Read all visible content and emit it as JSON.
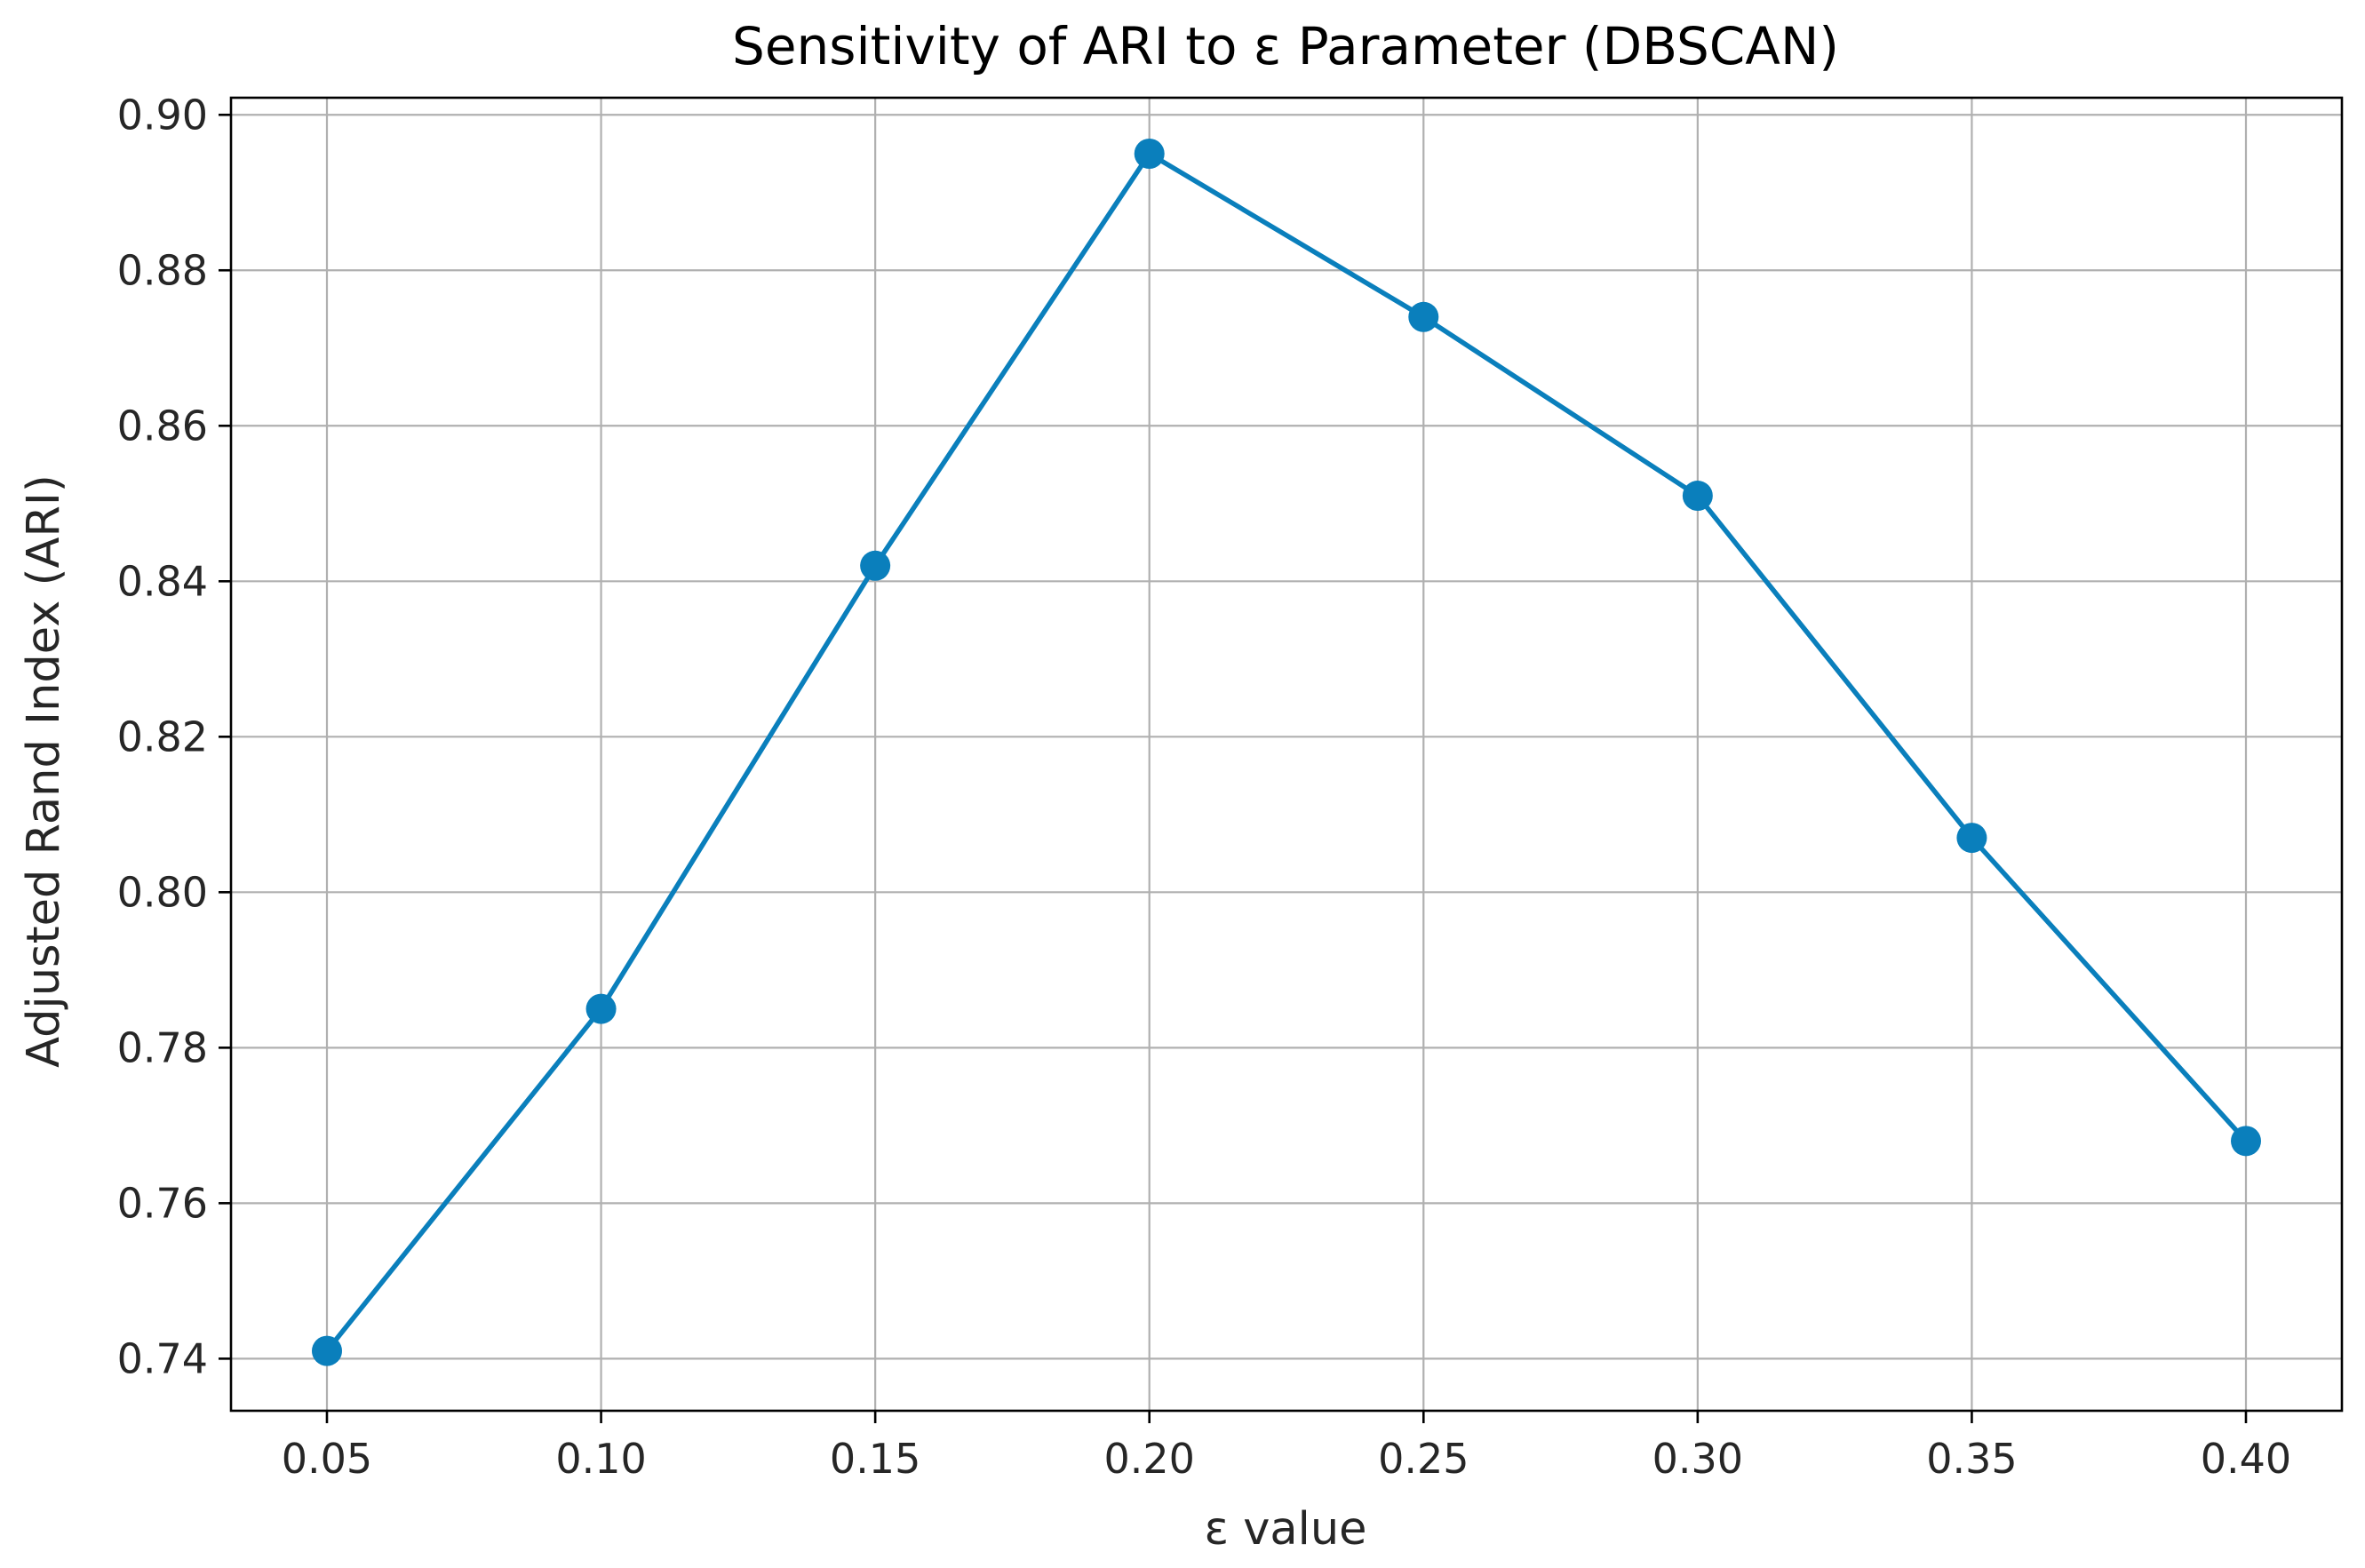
{
  "chart_data": {
    "type": "line",
    "title": "Sensitivity of ARI to ε Parameter (DBSCAN)",
    "xlabel": "ε value",
    "ylabel": "Adjusted Rand Index (ARI)",
    "x": [
      0.05,
      0.1,
      0.15,
      0.2,
      0.25,
      0.3,
      0.35,
      0.4
    ],
    "x_tick_labels": [
      "0.05",
      "0.10",
      "0.15",
      "0.20",
      "0.25",
      "0.30",
      "0.35",
      "0.40"
    ],
    "y_ticks": [
      0.74,
      0.76,
      0.78,
      0.8,
      0.82,
      0.84,
      0.86,
      0.88,
      0.9
    ],
    "y_tick_labels": [
      "0.74",
      "0.76",
      "0.78",
      "0.80",
      "0.82",
      "0.84",
      "0.86",
      "0.88",
      "0.90"
    ],
    "xlim": [
      0.0325,
      0.4175
    ],
    "ylim": [
      0.7333,
      0.9022
    ],
    "grid": true,
    "series": [
      {
        "values": [
          0.741,
          0.785,
          0.842,
          0.895,
          0.874,
          0.851,
          0.807,
          0.768
        ],
        "color": "#0a7fbc",
        "marker": "circle"
      }
    ]
  }
}
